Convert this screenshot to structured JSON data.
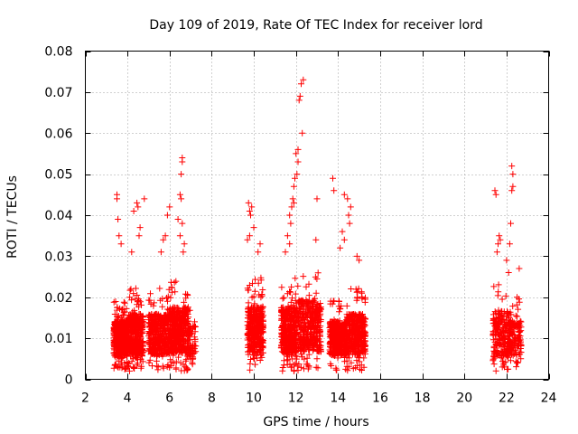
{
  "chart_data": {
    "type": "scatter",
    "title": "Day 109 of 2019, Rate Of TEC Index for receiver lord",
    "xlabel": "GPS time / hours",
    "ylabel": "ROTI / TECUs",
    "xlim": [
      2,
      24
    ],
    "ylim": [
      0,
      0.08
    ],
    "x_ticks": [
      2,
      4,
      6,
      8,
      10,
      12,
      14,
      16,
      18,
      20,
      22,
      24
    ],
    "x_tick_labels": [
      "2",
      "4",
      "6",
      "8",
      "10",
      "12",
      "14",
      "16",
      "18",
      "20",
      "22",
      "24"
    ],
    "y_ticks": [
      0,
      0.01,
      0.02,
      0.03,
      0.04,
      0.05,
      0.06,
      0.07,
      0.08
    ],
    "y_tick_labels": [
      "0",
      "0.01",
      "0.02",
      "0.03",
      "0.04",
      "0.05",
      "0.06",
      "0.07",
      "0.08"
    ],
    "grid": true,
    "marker": "+",
    "color": "#ff0000",
    "series": [
      {
        "name": "ROTI",
        "clusters": [
          {
            "x_range": [
              3.35,
              4.0
            ],
            "y_base": 0.01,
            "spread": 0.006,
            "n": 420
          },
          {
            "x_range": [
              4.0,
              4.75
            ],
            "y_base": 0.011,
            "spread": 0.007,
            "n": 420
          },
          {
            "x_range": [
              5.0,
              6.0
            ],
            "y_base": 0.011,
            "spread": 0.007,
            "n": 420
          },
          {
            "x_range": [
              6.0,
              6.9
            ],
            "y_base": 0.012,
            "spread": 0.008,
            "n": 420
          },
          {
            "x_range": [
              6.9,
              7.25
            ],
            "y_base": 0.009,
            "spread": 0.006,
            "n": 60
          },
          {
            "x_range": [
              9.7,
              10.45
            ],
            "y_base": 0.012,
            "spread": 0.008,
            "n": 360
          },
          {
            "x_range": [
              11.3,
              12.0
            ],
            "y_base": 0.012,
            "spread": 0.008,
            "n": 380
          },
          {
            "x_range": [
              12.0,
              13.2
            ],
            "y_base": 0.013,
            "spread": 0.009,
            "n": 420
          },
          {
            "x_range": [
              13.6,
              14.4
            ],
            "y_base": 0.01,
            "spread": 0.006,
            "n": 400
          },
          {
            "x_range": [
              14.4,
              15.3
            ],
            "y_base": 0.011,
            "spread": 0.007,
            "n": 400
          },
          {
            "x_range": [
              21.35,
              22.1
            ],
            "y_base": 0.011,
            "spread": 0.008,
            "n": 200
          },
          {
            "x_range": [
              22.1,
              22.7
            ],
            "y_base": 0.01,
            "spread": 0.006,
            "n": 160
          }
        ],
        "outliers": [
          [
            3.5,
            0.045
          ],
          [
            3.5,
            0.044
          ],
          [
            3.55,
            0.039
          ],
          [
            3.6,
            0.035
          ],
          [
            3.7,
            0.033
          ],
          [
            4.3,
            0.041
          ],
          [
            4.45,
            0.043
          ],
          [
            4.5,
            0.042
          ],
          [
            4.6,
            0.037
          ],
          [
            4.8,
            0.044
          ],
          [
            4.55,
            0.035
          ],
          [
            4.2,
            0.031
          ],
          [
            4.1,
            0.002
          ],
          [
            4.05,
            0.003
          ],
          [
            6.0,
            0.042
          ],
          [
            5.9,
            0.04
          ],
          [
            5.8,
            0.035
          ],
          [
            5.7,
            0.034
          ],
          [
            5.6,
            0.031
          ],
          [
            6.6,
            0.054
          ],
          [
            6.6,
            0.053
          ],
          [
            6.55,
            0.05
          ],
          [
            6.5,
            0.045
          ],
          [
            6.55,
            0.044
          ],
          [
            6.6,
            0.038
          ],
          [
            6.4,
            0.039
          ],
          [
            6.5,
            0.035
          ],
          [
            6.7,
            0.033
          ],
          [
            6.65,
            0.031
          ],
          [
            9.75,
            0.043
          ],
          [
            9.8,
            0.041
          ],
          [
            9.9,
            0.042
          ],
          [
            9.85,
            0.04
          ],
          [
            10.0,
            0.037
          ],
          [
            9.8,
            0.035
          ],
          [
            9.7,
            0.034
          ],
          [
            10.3,
            0.033
          ],
          [
            10.2,
            0.031
          ],
          [
            12.35,
            0.073
          ],
          [
            12.25,
            0.072
          ],
          [
            12.2,
            0.069
          ],
          [
            12.15,
            0.068
          ],
          [
            12.3,
            0.06
          ],
          [
            12.1,
            0.056
          ],
          [
            12.0,
            0.055
          ],
          [
            12.1,
            0.053
          ],
          [
            12.05,
            0.05
          ],
          [
            11.95,
            0.049
          ],
          [
            11.9,
            0.047
          ],
          [
            11.85,
            0.044
          ],
          [
            11.9,
            0.043
          ],
          [
            11.8,
            0.042
          ],
          [
            11.7,
            0.04
          ],
          [
            11.75,
            0.038
          ],
          [
            11.6,
            0.035
          ],
          [
            11.7,
            0.033
          ],
          [
            11.5,
            0.031
          ],
          [
            13.0,
            0.044
          ],
          [
            12.95,
            0.034
          ],
          [
            11.9,
            0.002
          ],
          [
            11.8,
            0.003
          ],
          [
            13.75,
            0.049
          ],
          [
            13.8,
            0.046
          ],
          [
            14.3,
            0.045
          ],
          [
            14.45,
            0.044
          ],
          [
            14.6,
            0.042
          ],
          [
            14.5,
            0.04
          ],
          [
            14.55,
            0.038
          ],
          [
            14.2,
            0.036
          ],
          [
            14.3,
            0.034
          ],
          [
            14.1,
            0.032
          ],
          [
            14.9,
            0.03
          ],
          [
            15.0,
            0.029
          ],
          [
            21.45,
            0.046
          ],
          [
            21.5,
            0.045
          ],
          [
            21.65,
            0.035
          ],
          [
            21.7,
            0.034
          ],
          [
            21.6,
            0.033
          ],
          [
            21.55,
            0.031
          ],
          [
            22.25,
            0.052
          ],
          [
            22.3,
            0.05
          ],
          [
            22.3,
            0.047
          ],
          [
            22.25,
            0.046
          ],
          [
            22.2,
            0.038
          ],
          [
            22.15,
            0.033
          ],
          [
            22.0,
            0.029
          ],
          [
            22.6,
            0.027
          ],
          [
            22.1,
            0.026
          ],
          [
            22.5,
            0.02
          ],
          [
            21.8,
            0.003
          ],
          [
            21.9,
            0.003
          ],
          [
            22.5,
            0.004
          ]
        ]
      }
    ]
  }
}
